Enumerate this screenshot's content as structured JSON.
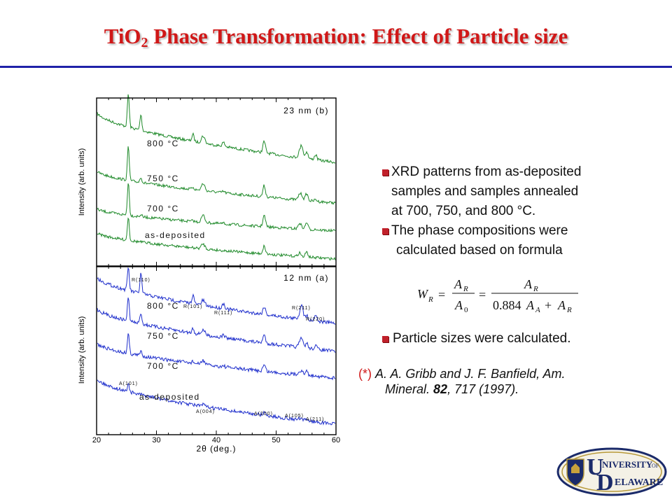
{
  "slide": {
    "title_main": "TiO",
    "title_sub": "2",
    "title_rest": " Phase Transformation: Effect of Particle size"
  },
  "figure": {
    "top_panel_label": "23 nm (b)",
    "bottom_panel_label": "12 nm (a)",
    "y_axis_label": "Intensity (arb. units)",
    "x_axis_label": "2θ (deg.)",
    "x_ticks": [
      "20",
      "30",
      "40",
      "50",
      "60"
    ],
    "x_range": [
      20,
      60
    ],
    "trace_labels_top": [
      "800 °C",
      "750 °C",
      "700 °C",
      "as-deposited"
    ],
    "trace_labels_bottom": [
      "800 °C",
      "750 °C",
      "700 °C",
      "as-deposited"
    ],
    "peak_labels": [
      "R(110)",
      "R(101)",
      "R(111)",
      "R(211)",
      "R(220)",
      "A(101)",
      "A(004)",
      "A(200)",
      "A(105)",
      "A(211)"
    ],
    "colors": {
      "top_traces": "#1f8a2a",
      "bottom_traces": "#1f2fcc"
    }
  },
  "bullets": {
    "b1_l1": "XRD patterns from as-deposited",
    "b1_l2": "samples and samples annealed",
    "b1_l3": "at 700, 750, and 800 °C.",
    "b2_l1": "The phase compositions were",
    "b2_l2": "calculated based on formula",
    "b3": "Particle sizes were calculated."
  },
  "formula": {
    "W": "W",
    "W_sub": "R",
    "eq1": "=",
    "eq2": "=",
    "A": "A",
    "R": "R",
    "zero": "0",
    "A_sub": "A",
    "den2": "0.884",
    "plus": "+"
  },
  "reference": {
    "marker": "(*)",
    "line1": "A. A. Gribb and J. F. Banfield, Am.",
    "line2_a": "Mineral. ",
    "line2_bold": "82",
    "line2_b": ", 717 (1997)."
  },
  "logo": {
    "big_u": "U",
    "big_d": "D",
    "word1": "NIVERSITY",
    "of": "OF",
    "word2": "ELAWARE"
  }
}
